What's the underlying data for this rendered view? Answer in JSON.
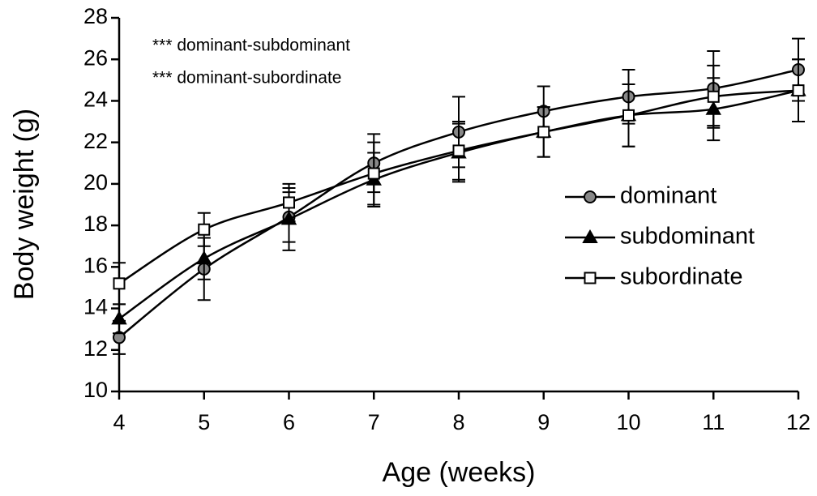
{
  "chart_data": {
    "type": "line",
    "x_label": "Age (weeks)",
    "y_label": "Body weight (g)",
    "annotations": [
      "*** dominant-subdominant",
      "*** dominant-subordinate"
    ],
    "x": [
      4,
      5,
      6,
      7,
      8,
      9,
      10,
      11,
      12
    ],
    "xlim": [
      4,
      12
    ],
    "xticks": [
      4,
      5,
      6,
      7,
      8,
      9,
      10,
      11,
      12
    ],
    "ylim": [
      10,
      28
    ],
    "yticks": [
      10,
      12,
      14,
      16,
      18,
      20,
      22,
      24,
      26,
      28
    ],
    "legend": "right",
    "series": [
      {
        "name": "dominant",
        "color": "#000000",
        "marker": "circle",
        "values": [
          12.6,
          15.9,
          18.4,
          21.0,
          22.5,
          23.5,
          24.2,
          24.6,
          25.5
        ],
        "errors": [
          0.8,
          1.5,
          1.2,
          1.4,
          1.7,
          1.2,
          1.3,
          1.8,
          1.5
        ]
      },
      {
        "name": "subdominant",
        "color": "#000000",
        "marker": "triangle",
        "values": [
          13.5,
          16.4,
          18.3,
          20.2,
          21.5,
          22.5,
          23.3,
          23.6,
          24.5
        ],
        "errors": [
          0.7,
          1.0,
          1.5,
          1.3,
          1.4,
          1.2,
          1.5,
          1.5,
          1.5
        ]
      },
      {
        "name": "subordinate",
        "color": "#000000",
        "marker": "square",
        "values": [
          15.2,
          17.8,
          19.1,
          20.5,
          21.6,
          22.5,
          23.3,
          24.2,
          24.5
        ],
        "errors": [
          1.0,
          0.8,
          0.9,
          1.5,
          1.4,
          1.2,
          1.5,
          1.5,
          1.5
        ]
      }
    ]
  }
}
